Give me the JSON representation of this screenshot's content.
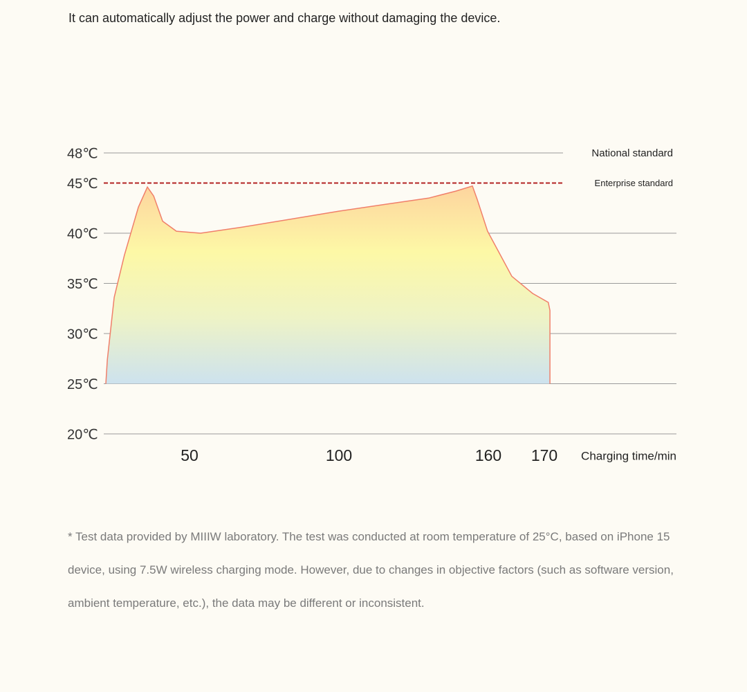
{
  "header": {
    "text": "It can automatically adjust the power and charge without damaging the device."
  },
  "chart_data": {
    "type": "area",
    "x_label": "Charging time/min",
    "x": [
      22,
      22.5,
      24.8,
      28.2,
      32.9,
      35.9,
      38,
      41,
      45.6,
      53.7,
      67.6,
      83.8,
      100,
      119.4,
      136,
      147,
      153.6,
      155.5,
      159.7,
      164.2,
      167.9,
      170.7,
      171,
      171
    ],
    "values": [
      25,
      27.4,
      33.6,
      37.8,
      42.6,
      44.6,
      43.7,
      41.2,
      40.2,
      40,
      40.6,
      41.4,
      42.2,
      42.9,
      43.5,
      44.2,
      44.7,
      43.4,
      40.2,
      35.7,
      34,
      33.1,
      32.3,
      25
    ],
    "color": "#f07f6a",
    "gradient": [
      "#fdd49e",
      "#fdf8a6",
      "#eef3c6",
      "#cde2ee"
    ],
    "ylim": [
      20,
      48
    ],
    "yticks": [
      {
        "value": 20,
        "label": "20℃"
      },
      {
        "value": 25,
        "label": "25℃"
      },
      {
        "value": 30,
        "label": "30℃"
      },
      {
        "value": 35,
        "label": "35℃"
      },
      {
        "value": 40,
        "label": "40℃"
      },
      {
        "value": 45,
        "label": "45℃"
      },
      {
        "value": 48,
        "label": "48℃"
      }
    ],
    "xticks": [
      50,
      100,
      160,
      170
    ],
    "grid": true,
    "reference_lines": [
      {
        "name": "National standard",
        "value": 48,
        "style": "solid",
        "color": "#999999"
      },
      {
        "name": "Enterprise standard",
        "value": 45,
        "style": "dashed",
        "color": "#b22222"
      }
    ]
  },
  "footnote": {
    "text": "* Test data provided by MIIIW laboratory. The test was conducted at room temperature of 25°C, based on iPhone 15 device, using 7.5W wireless charging mode. However, due to changes in objective factors (such as software version, ambient temperature, etc.), the data may be different or inconsistent."
  }
}
